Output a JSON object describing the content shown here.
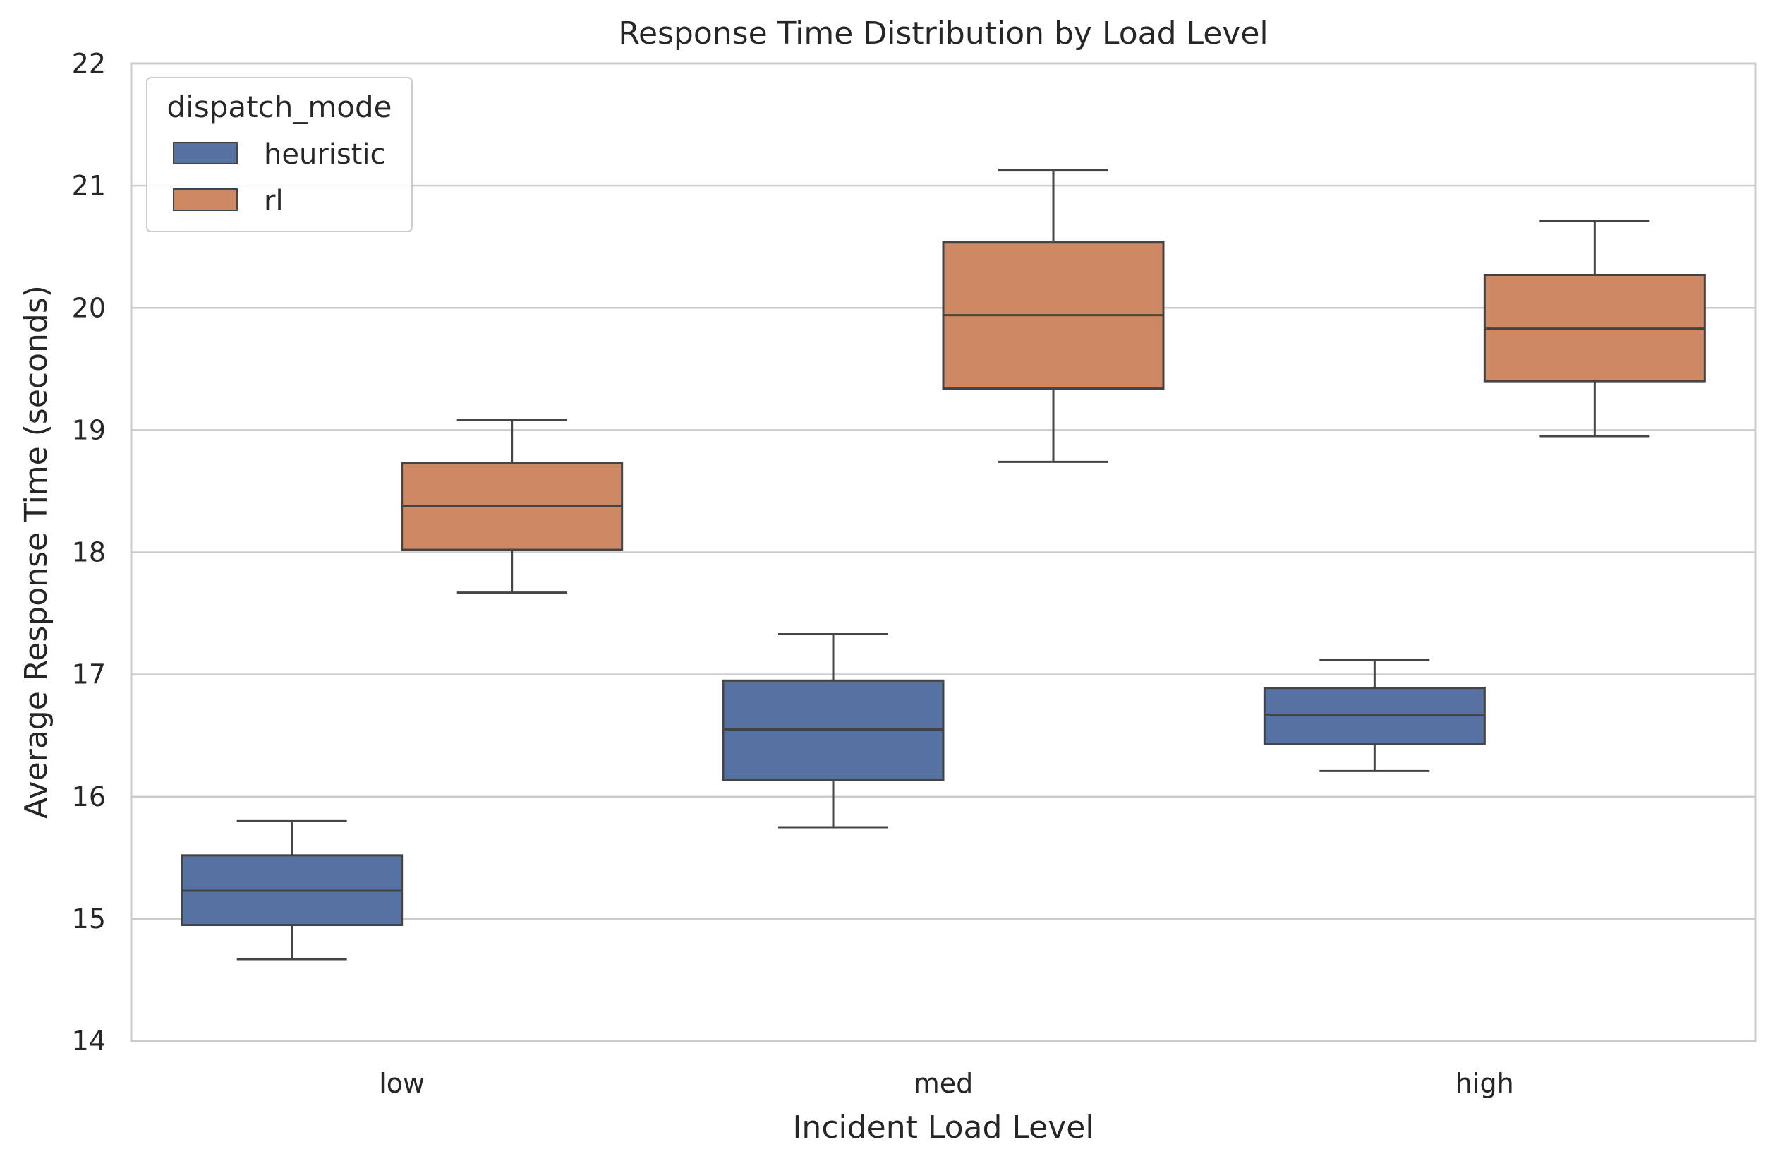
{
  "chart_data": {
    "type": "box",
    "title": "Response Time Distribution by Load Level",
    "xlabel": "Incident Load Level",
    "ylabel": "Average Response Time (seconds)",
    "categories": [
      "low",
      "med",
      "high"
    ],
    "ylim": [
      14,
      22
    ],
    "yticks": [
      14,
      15,
      16,
      17,
      18,
      19,
      20,
      21,
      22
    ],
    "grid": "horizontal",
    "legend": {
      "title": "dispatch_mode",
      "placement": "top-left"
    },
    "series": [
      {
        "name": "heuristic",
        "color": "#5572a3",
        "boxes": [
          {
            "category": "low",
            "whisker_low": 14.67,
            "q1": 14.95,
            "median": 15.23,
            "q3": 15.52,
            "whisker_high": 15.8
          },
          {
            "category": "med",
            "whisker_low": 15.75,
            "q1": 16.14,
            "median": 16.55,
            "q3": 16.95,
            "whisker_high": 17.33
          },
          {
            "category": "high",
            "whisker_low": 16.21,
            "q1": 16.43,
            "median": 16.67,
            "q3": 16.89,
            "whisker_high": 17.12
          }
        ]
      },
      {
        "name": "rl",
        "color": "#cd8963",
        "boxes": [
          {
            "category": "low",
            "whisker_low": 17.67,
            "q1": 18.02,
            "median": 18.38,
            "q3": 18.73,
            "whisker_high": 19.08
          },
          {
            "category": "med",
            "whisker_low": 18.74,
            "q1": 19.34,
            "median": 19.94,
            "q3": 20.54,
            "whisker_high": 21.13
          },
          {
            "category": "high",
            "whisker_low": 18.95,
            "q1": 19.4,
            "median": 19.83,
            "q3": 20.27,
            "whisker_high": 20.71
          }
        ]
      }
    ]
  }
}
